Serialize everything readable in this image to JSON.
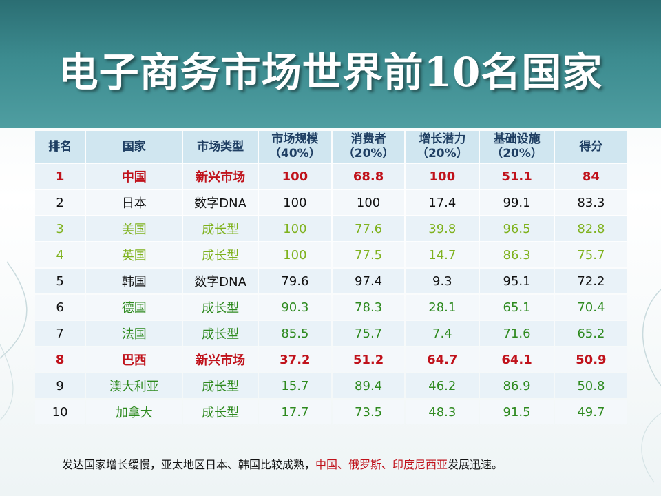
{
  "title": "电子商务市场世界前10名国家",
  "table": {
    "headers": [
      {
        "line1": "排名",
        "line2": ""
      },
      {
        "line1": "国家",
        "line2": ""
      },
      {
        "line1": "市场类型",
        "line2": ""
      },
      {
        "line1": "市场规模",
        "line2": "（40%）"
      },
      {
        "line1": "消费者",
        "line2": "（20%）"
      },
      {
        "line1": "增长潜力",
        "line2": "（20%）"
      },
      {
        "line1": "基础设施",
        "line2": "（20%）"
      },
      {
        "line1": "得分",
        "line2": ""
      }
    ],
    "rows": [
      [
        "1",
        "中国",
        "新兴市场",
        "100",
        "68.8",
        "100",
        "51.1",
        "84"
      ],
      [
        "2",
        "日本",
        "数字DNA",
        "100",
        "100",
        "17.4",
        "99.1",
        "83.3"
      ],
      [
        "3",
        "美国",
        "成长型",
        "100",
        "77.6",
        "39.8",
        "96.5",
        "82.8"
      ],
      [
        "4",
        "英国",
        "成长型",
        "100",
        "77.5",
        "14.7",
        "86.3",
        "75.7"
      ],
      [
        "5",
        "韩国",
        "数字DNA",
        "79.6",
        "97.4",
        "9.3",
        "95.1",
        "72.2"
      ],
      [
        "6",
        "德国",
        "成长型",
        "90.3",
        "78.3",
        "28.1",
        "65.1",
        "70.4"
      ],
      [
        "7",
        "法国",
        "成长型",
        "85.5",
        "75.7",
        "7.4",
        "71.6",
        "65.2"
      ],
      [
        "8",
        "巴西",
        "新兴市场",
        "37.2",
        "51.2",
        "64.7",
        "64.1",
        "50.9"
      ],
      [
        "9",
        "澳大利亚",
        "成长型",
        "15.7",
        "89.4",
        "46.2",
        "86.9",
        "50.8"
      ],
      [
        "10",
        "加拿大",
        "成长型",
        "17.7",
        "73.5",
        "48.3",
        "91.5",
        "49.7"
      ]
    ]
  },
  "footnote": {
    "part1": "发达国家增长缓慢，亚太地区日本、韩国比较成熟，",
    "highlight": "中国、俄罗斯、印度尼西亚",
    "part2": "发展迅速。"
  },
  "colors": {
    "header_band": "#3c8b8f",
    "emerging": "#c0121b",
    "growth_light": "#7fb21e",
    "growth_dark": "#2e8a1f",
    "table_header_bg": "#d0e6f0"
  }
}
